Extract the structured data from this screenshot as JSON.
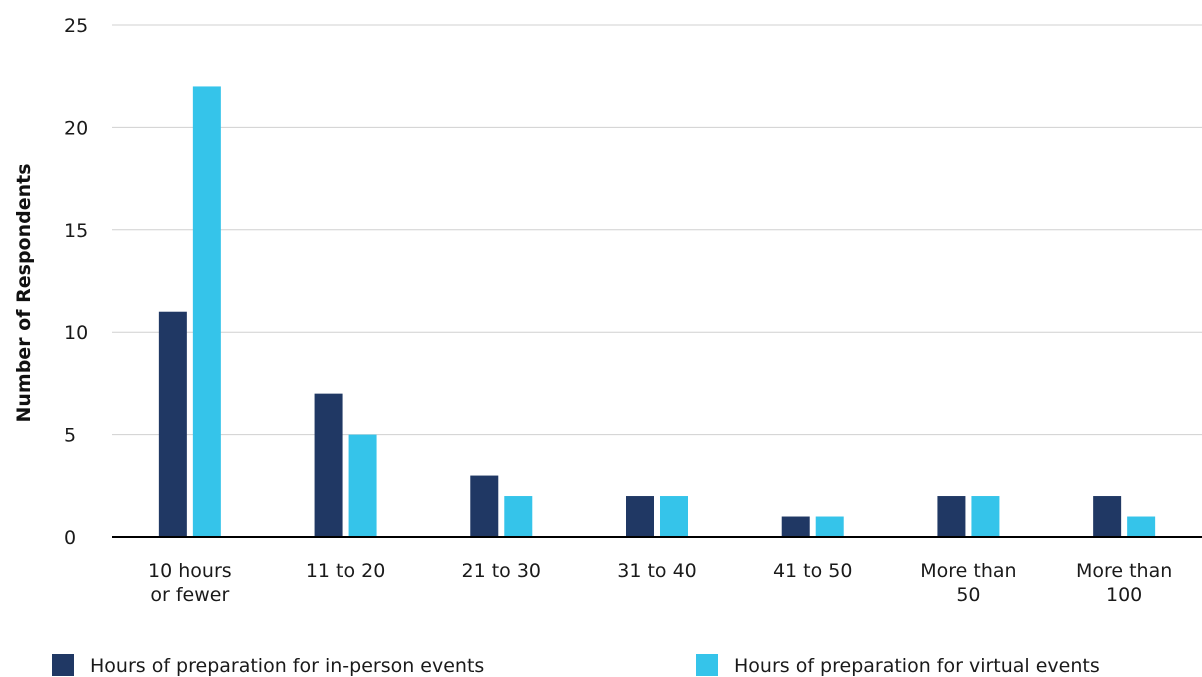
{
  "chart_data": {
    "type": "bar",
    "title": "",
    "xlabel": "",
    "ylabel": "Number of Respondents",
    "ylim": [
      0,
      25
    ],
    "yticks": [
      0,
      5,
      10,
      15,
      20,
      25
    ],
    "grid": true,
    "legend_position": "bottom",
    "categories": [
      [
        "10 hours",
        "or fewer"
      ],
      [
        "11  to 20"
      ],
      [
        "21 to 30"
      ],
      [
        "31 to 40"
      ],
      [
        "41 to 50"
      ],
      [
        "More than",
        "50"
      ],
      [
        "More than",
        "100"
      ]
    ],
    "series": [
      {
        "name": "Hours of preparation for in-person events",
        "color": "#203864",
        "values": [
          11,
          7,
          3,
          2,
          1,
          2,
          2
        ]
      },
      {
        "name": "Hours of preparation for virtual events",
        "color": "#35C4EA",
        "values": [
          22,
          5,
          2,
          2,
          1,
          2,
          1
        ]
      }
    ]
  },
  "colors": {
    "grid": "#d0d0d0",
    "axis": "#000000"
  }
}
